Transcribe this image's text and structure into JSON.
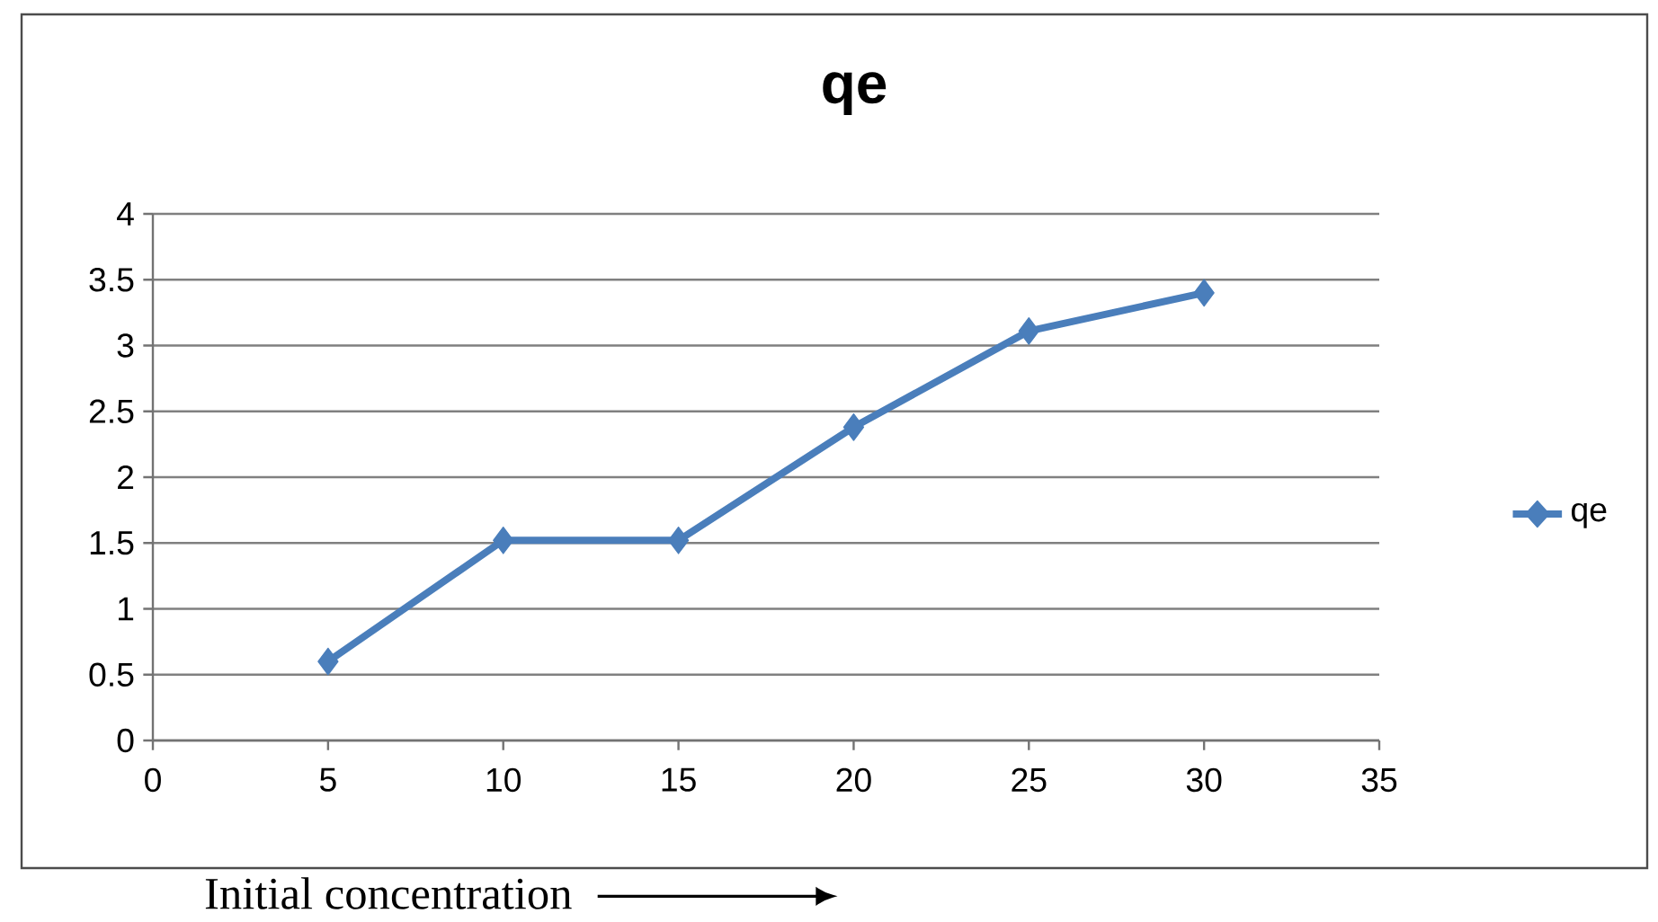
{
  "chart_data": {
    "type": "line",
    "title": "qe",
    "xlabel": "Initial concentration",
    "x": [
      5,
      10,
      15,
      20,
      25,
      30
    ],
    "series": [
      {
        "name": "qe",
        "color": "#4a7ebb",
        "values": [
          0.6,
          1.52,
          1.52,
          2.38,
          3.11,
          3.4
        ]
      }
    ],
    "xlim": [
      0,
      35
    ],
    "xticks": [
      0,
      5,
      10,
      15,
      20,
      25,
      30,
      35
    ],
    "ylim": [
      0,
      4
    ],
    "yticks": [
      0,
      0.5,
      1,
      1.5,
      2,
      2.5,
      3,
      3.5,
      4
    ],
    "grid": "y",
    "legend": "right",
    "marker": "diamond",
    "line_style": "solid"
  }
}
